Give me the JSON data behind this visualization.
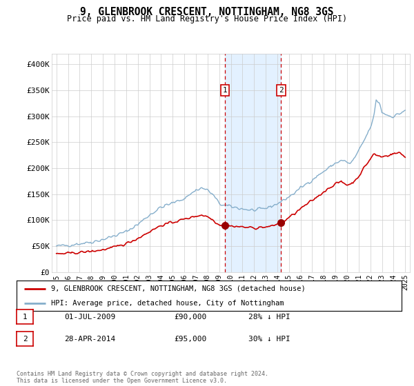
{
  "title": "9, GLENBROOK CRESCENT, NOTTINGHAM, NG8 3GS",
  "subtitle": "Price paid vs. HM Land Registry's House Price Index (HPI)",
  "legend_property": "9, GLENBROOK CRESCENT, NOTTINGHAM, NG8 3GS (detached house)",
  "legend_hpi": "HPI: Average price, detached house, City of Nottingham",
  "footer": "Contains HM Land Registry data © Crown copyright and database right 2024.\nThis data is licensed under the Open Government Licence v3.0.",
  "transactions": [
    {
      "num": 1,
      "date": "01-JUL-2009",
      "price": 90000,
      "hpi_diff": "28% ↓ HPI",
      "year": 2009.5
    },
    {
      "num": 2,
      "date": "28-APR-2014",
      "price": 95000,
      "hpi_diff": "30% ↓ HPI",
      "year": 2014.33
    }
  ],
  "property_color": "#cc0000",
  "hpi_color": "#85aecb",
  "shaded_color": "#ddeeff",
  "ylim": [
    0,
    420000
  ],
  "xlim_start": 1994.6,
  "xlim_end": 2025.4,
  "yticks": [
    0,
    50000,
    100000,
    150000,
    200000,
    250000,
    300000,
    350000,
    400000
  ],
  "ytick_labels": [
    "£0",
    "£50K",
    "£100K",
    "£150K",
    "£200K",
    "£250K",
    "£300K",
    "£350K",
    "£400K"
  ],
  "xticks": [
    1995,
    1996,
    1997,
    1998,
    1999,
    2000,
    2001,
    2002,
    2003,
    2004,
    2005,
    2006,
    2007,
    2008,
    2009,
    2010,
    2011,
    2012,
    2013,
    2014,
    2015,
    2016,
    2017,
    2018,
    2019,
    2020,
    2021,
    2022,
    2023,
    2024,
    2025
  ]
}
